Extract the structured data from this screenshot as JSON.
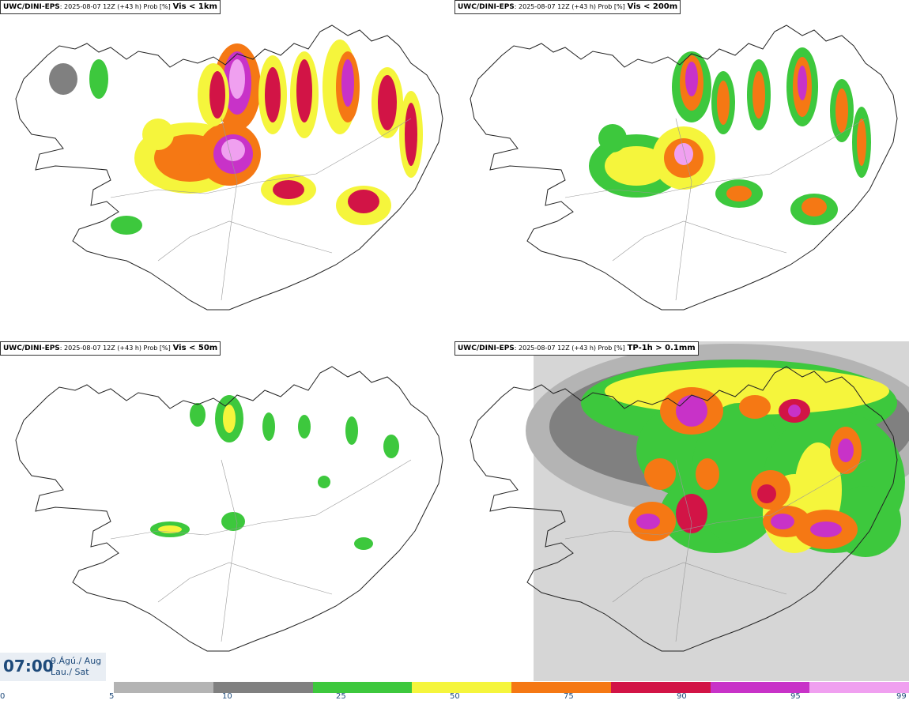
{
  "panels": [
    {
      "source": "UWC/DINI-EPS",
      "meta": ": 2025-08-07 12Z (+43 h) Prob [%]",
      "variable": "Vis < 1km"
    },
    {
      "source": "UWC/DINI-EPS",
      "meta": ": 2025-08-07 12Z (+43 h) Prob [%]",
      "variable": "Vis < 200m"
    },
    {
      "source": "UWC/DINI-EPS",
      "meta": ": 2025-08-07 12Z (+43 h) Prob [%]",
      "variable": "Vis < 50m"
    },
    {
      "source": "UWC/DINI-EPS",
      "meta": ": 2025-08-07 12Z (+43 h) Prob [%]",
      "variable": "TP-1h > 0.1mm"
    }
  ],
  "clock": {
    "time": "07:00",
    "date_line1": "9.Ágú./ Aug",
    "date_line2": "Lau./ Sat"
  },
  "legend": {
    "ticks": [
      "0",
      "5",
      "10",
      "25",
      "50",
      "75",
      "90",
      "95",
      "99"
    ],
    "colors": [
      "#b4b4b4",
      "#808080",
      "#3dc83d",
      "#f5f53c",
      "#f57814",
      "#d21446",
      "#c832c8",
      "#f0a0f0"
    ]
  }
}
